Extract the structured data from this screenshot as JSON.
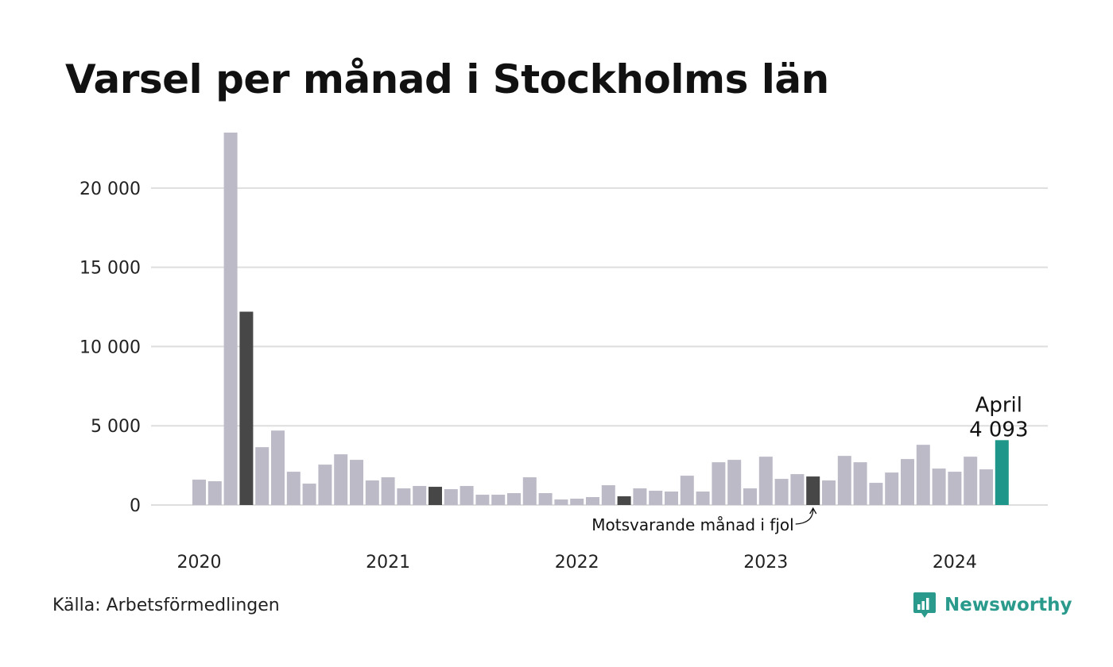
{
  "title": "Varsel per månad i Stockholms län",
  "source": "Källa: Arbetsförmedlingen",
  "brand": {
    "name": "Newsworthy",
    "icon": "newsworthy-logo-icon",
    "color": "#2a9a8c"
  },
  "colors": {
    "bar_default": "#bdbac8",
    "bar_same_month": "#474747",
    "bar_latest": "#1e978a",
    "gridline": "#dedede"
  },
  "chart_data": {
    "type": "bar",
    "title": "Varsel per månad i Stockholms län",
    "xlabel": "",
    "ylabel": "",
    "ylim": [
      0,
      23500
    ],
    "y_ticks": [
      0,
      5000,
      10000,
      15000,
      20000
    ],
    "y_tick_labels": [
      "0",
      "5 000",
      "10 000",
      "15 000",
      "20 000"
    ],
    "x_tick_labels": [
      "2020",
      "2021",
      "2022",
      "2023",
      "2024"
    ],
    "grid": true,
    "categories": [
      "2020-01",
      "2020-02",
      "2020-03",
      "2020-04",
      "2020-05",
      "2020-06",
      "2020-07",
      "2020-08",
      "2020-09",
      "2020-10",
      "2020-11",
      "2020-12",
      "2021-01",
      "2021-02",
      "2021-03",
      "2021-04",
      "2021-05",
      "2021-06",
      "2021-07",
      "2021-08",
      "2021-09",
      "2021-10",
      "2021-11",
      "2021-12",
      "2022-01",
      "2022-02",
      "2022-03",
      "2022-04",
      "2022-05",
      "2022-06",
      "2022-07",
      "2022-08",
      "2022-09",
      "2022-10",
      "2022-11",
      "2022-12",
      "2023-01",
      "2023-02",
      "2023-03",
      "2023-04",
      "2023-05",
      "2023-06",
      "2023-07",
      "2023-08",
      "2023-09",
      "2023-10",
      "2023-11",
      "2023-12",
      "2024-01",
      "2024-02",
      "2024-03",
      "2024-04"
    ],
    "values": [
      1600,
      1500,
      23500,
      12200,
      3650,
      4700,
      2100,
      1350,
      2550,
      3200,
      2850,
      1550,
      1750,
      1050,
      1200,
      1150,
      1000,
      1200,
      650,
      650,
      750,
      1750,
      750,
      350,
      400,
      500,
      1250,
      550,
      1050,
      900,
      850,
      1850,
      850,
      2700,
      2850,
      1050,
      3050,
      1650,
      1950,
      1800,
      1550,
      3100,
      2700,
      1400,
      2050,
      2900,
      3800,
      2300,
      2100,
      3050,
      2250,
      4093
    ],
    "highlight_same_month": [
      "2020-04",
      "2021-04",
      "2022-04",
      "2023-04"
    ],
    "highlight_latest": "2024-04",
    "annotations": [
      {
        "category": "2024-04",
        "label": "April",
        "value_label": "4 093"
      },
      {
        "category": "2023-04",
        "label": "Motsvarande månad i fjol"
      }
    ]
  }
}
